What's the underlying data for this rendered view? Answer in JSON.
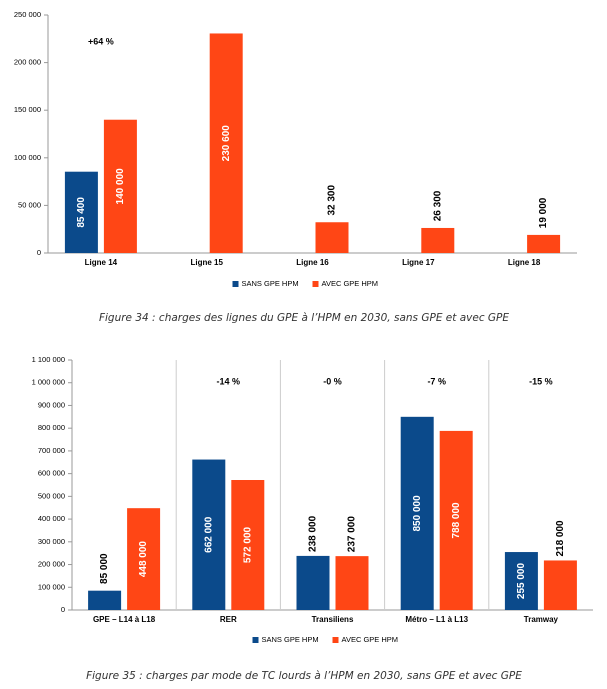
{
  "chart_data": [
    {
      "type": "bar",
      "categories": [
        "Ligne 14",
        "Ligne 15",
        "Ligne 16",
        "Ligne 17",
        "Ligne 18"
      ],
      "series": [
        {
          "name": "SANS GPE HPM",
          "color": "#0b4a8b",
          "values": [
            85400,
            null,
            null,
            null,
            null
          ],
          "value_labels": [
            "85 400",
            null,
            null,
            null,
            null
          ]
        },
        {
          "name": "AVEC GPE HPM",
          "color": "#ff4615",
          "values": [
            140000,
            230600,
            32300,
            26300,
            19000
          ],
          "value_labels": [
            "140 000",
            "230 600",
            "32 300",
            "26 300",
            "19 000"
          ]
        }
      ],
      "ylim": [
        0,
        250000
      ],
      "yticks": [
        {
          "value": 0,
          "label": "0"
        },
        {
          "value": 50000,
          "label": "50 000"
        },
        {
          "value": 100000,
          "label": "100 000"
        },
        {
          "value": 150000,
          "label": "150 000"
        },
        {
          "value": 200000,
          "label": "200 000"
        },
        {
          "value": 250000,
          "label": "250 000"
        }
      ],
      "annotations": [
        {
          "text": "+64 %",
          "category": 0
        }
      ],
      "category_grid": false,
      "legend": "bottom"
    },
    {
      "type": "bar",
      "categories": [
        "GPE – L14 à L18",
        "RER",
        "Transiliens",
        "Métro – L1 à L13",
        "Tramway"
      ],
      "series": [
        {
          "name": "SANS GPE HPM",
          "color": "#0b4a8b",
          "values": [
            85000,
            662000,
            238000,
            850000,
            255000
          ],
          "value_labels": [
            "85 000",
            "662 000",
            "238 000",
            "850 000",
            "255 000"
          ]
        },
        {
          "name": "AVEC GPE HPM",
          "color": "#ff4615",
          "values": [
            448000,
            572000,
            237000,
            788000,
            218000
          ],
          "value_labels": [
            "448 000",
            "572 000",
            "237 000",
            "788 000",
            "218 000"
          ]
        }
      ],
      "ylim": [
        0,
        1100000
      ],
      "yticks": [
        {
          "value": 0,
          "label": "0"
        },
        {
          "value": 100000,
          "label": "100 000"
        },
        {
          "value": 200000,
          "label": "200 000"
        },
        {
          "value": 300000,
          "label": "300 000"
        },
        {
          "value": 400000,
          "label": "400 000"
        },
        {
          "value": 500000,
          "label": "500 000"
        },
        {
          "value": 600000,
          "label": "600 000"
        },
        {
          "value": 700000,
          "label": "700 000"
        },
        {
          "value": 800000,
          "label": "800 000"
        },
        {
          "value": 900000,
          "label": "900 000"
        },
        {
          "value": 1000000,
          "label": "1 000 000"
        },
        {
          "value": 1100000,
          "label": "1 100 000"
        }
      ],
      "annotations": [
        {
          "text": "-14 %",
          "category": 1
        },
        {
          "text": "-0 %",
          "category": 2
        },
        {
          "text": "-7 %",
          "category": 3
        },
        {
          "text": "-15 %",
          "category": 4
        }
      ],
      "category_grid": true,
      "legend": "bottom"
    }
  ],
  "captions": [
    "Figure 34 : charges des lignes du GPE à l’HPM en 2030, sans GPE et avec GPE",
    "Figure 35 : charges par mode de TC lourds à l’HPM en 2030, sans GPE et avec GPE"
  ]
}
